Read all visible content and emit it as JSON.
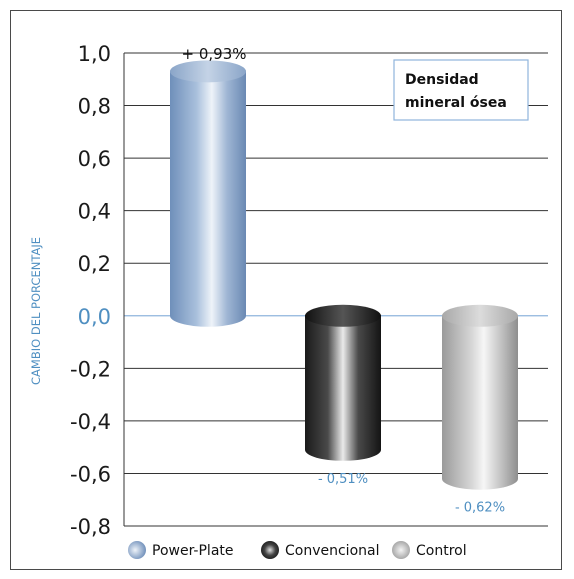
{
  "chart_data": {
    "type": "bar",
    "title": "Densidad mineral ósea",
    "title_lines": [
      "Densidad",
      "mineral ósea"
    ],
    "ylabel": "CAMBIO DEL PORCENTAJE",
    "xlabel": "",
    "ylim": [
      -0.8,
      1.0
    ],
    "yticks": [
      1.0,
      0.8,
      0.6,
      0.4,
      0.2,
      0.0,
      -0.2,
      -0.4,
      -0.6,
      -0.8
    ],
    "ytick_labels": [
      "1,0",
      "0,8",
      "0,6",
      "0,4",
      "0,2",
      "0,0",
      "-0,2",
      "-0,4",
      "-0,6",
      "-0,8"
    ],
    "grid": true,
    "legend_position": "bottom",
    "categories": [
      "Power-Plate",
      "Convencional",
      "Control"
    ],
    "values": [
      0.93,
      -0.51,
      -0.62
    ],
    "data_labels": [
      "+ 0,93%",
      "- 0,51%",
      "- 0,62%"
    ],
    "colors": {
      "Power-Plate": "#7f9ec6",
      "Convencional": "#2a2a2a",
      "Control": "#b5b5b5",
      "accent": "#4f8fc1",
      "zero_line": "#8fb5dd"
    }
  }
}
